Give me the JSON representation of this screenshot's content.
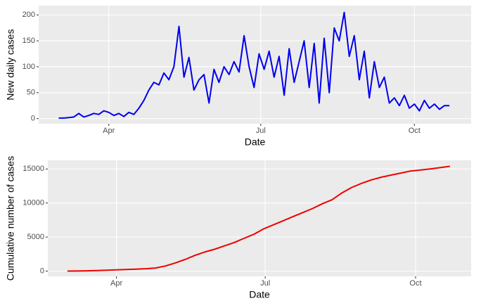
{
  "chart_data": [
    {
      "type": "line",
      "xlabel": "Date",
      "ylabel": "New daily cases",
      "x": [
        61,
        64,
        67,
        70,
        73,
        76,
        79,
        82,
        85,
        88,
        91,
        94,
        97,
        100,
        103,
        106,
        109,
        112,
        115,
        118,
        121,
        124,
        127,
        130,
        133,
        136,
        139,
        142,
        145,
        148,
        151,
        154,
        157,
        160,
        163,
        166,
        169,
        172,
        175,
        178,
        181,
        184,
        187,
        190,
        193,
        196,
        199,
        202,
        205,
        208,
        211,
        214,
        217,
        220,
        223,
        226,
        229,
        232,
        235,
        238,
        241,
        244,
        247,
        250,
        253,
        256,
        259,
        262,
        265,
        268,
        271,
        274,
        277,
        280,
        283,
        286,
        289,
        292,
        295
      ],
      "series": [
        {
          "name": "New daily cases",
          "color": "#0000ee",
          "values": [
            1,
            1,
            2,
            3,
            10,
            3,
            6,
            10,
            8,
            15,
            12,
            6,
            10,
            4,
            12,
            8,
            20,
            35,
            55,
            70,
            65,
            88,
            75,
            100,
            178,
            80,
            118,
            55,
            75,
            85,
            30,
            95,
            70,
            100,
            85,
            110,
            90,
            160,
            100,
            60,
            125,
            95,
            130,
            80,
            120,
            45,
            135,
            70,
            110,
            150,
            60,
            145,
            30,
            155,
            50,
            175,
            150,
            205,
            120,
            160,
            75,
            130,
            40,
            110,
            60,
            80,
            30,
            40,
            25,
            45,
            20,
            28,
            15,
            35,
            20,
            28,
            18,
            25,
            25
          ]
        }
      ],
      "xlim": [
        49,
        308
      ],
      "xticks": [
        {
          "value": 91,
          "label": "Apr"
        },
        {
          "value": 182,
          "label": "Jul"
        },
        {
          "value": 274,
          "label": "Oct"
        }
      ],
      "ylim": [
        -10,
        218
      ],
      "yticks": [
        0,
        50,
        100,
        150,
        200
      ],
      "grid": true
    },
    {
      "type": "line",
      "xlabel": "Date",
      "ylabel": "Cumulative number of cases",
      "x": [
        61,
        67,
        73,
        79,
        85,
        91,
        97,
        103,
        109,
        115,
        121,
        127,
        133,
        139,
        145,
        151,
        157,
        163,
        169,
        175,
        181,
        187,
        193,
        199,
        205,
        211,
        217,
        223,
        229,
        235,
        241,
        247,
        253,
        259,
        265,
        271,
        277,
        283,
        289,
        295
      ],
      "series": [
        {
          "name": "Cumulative number of cases",
          "color": "#ee0000",
          "values": [
            0,
            10,
            40,
            80,
            130,
            190,
            240,
            290,
            350,
            450,
            750,
            1200,
            1700,
            2300,
            2800,
            3200,
            3700,
            4200,
            4800,
            5400,
            6200,
            6800,
            7400,
            8000,
            8600,
            9200,
            9900,
            10500,
            11500,
            12300,
            12900,
            13400,
            13800,
            14100,
            14400,
            14700,
            14850,
            15000,
            15200,
            15400
          ]
        }
      ],
      "xlim": [
        49,
        308
      ],
      "xticks": [
        {
          "value": 91,
          "label": "Apr"
        },
        {
          "value": 182,
          "label": "Jul"
        },
        {
          "value": 274,
          "label": "Oct"
        }
      ],
      "ylim": [
        -775,
        16275
      ],
      "yticks": [
        0,
        5000,
        10000,
        15000
      ],
      "grid": true
    }
  ]
}
